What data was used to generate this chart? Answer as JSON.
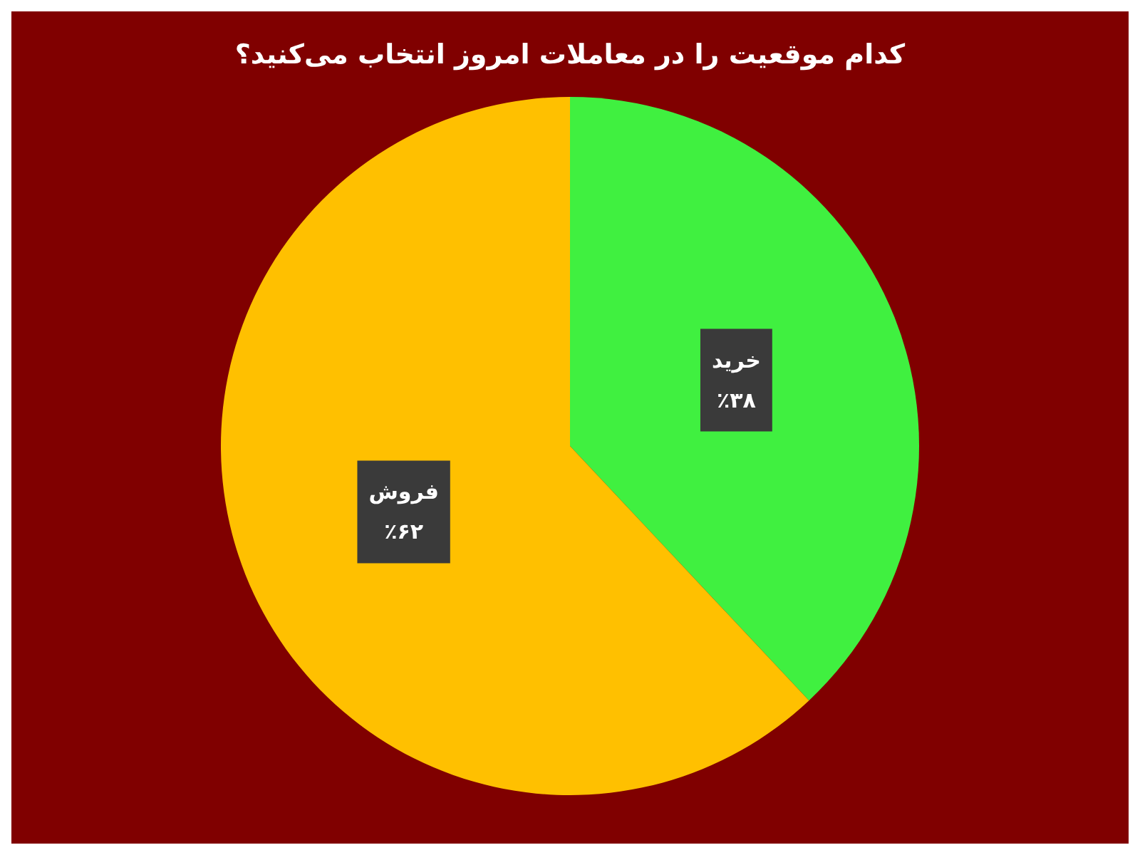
{
  "chart_data": {
    "type": "pie",
    "title": "کدام موقعیت را در معاملات امروز انتخاب می‌کنید؟",
    "categories": [
      "خرید",
      "فروش"
    ],
    "values": [
      38,
      62
    ],
    "value_labels": [
      "٪۳۸",
      "٪۶۲"
    ],
    "colors": [
      "#40f040",
      "#ffc000"
    ]
  }
}
